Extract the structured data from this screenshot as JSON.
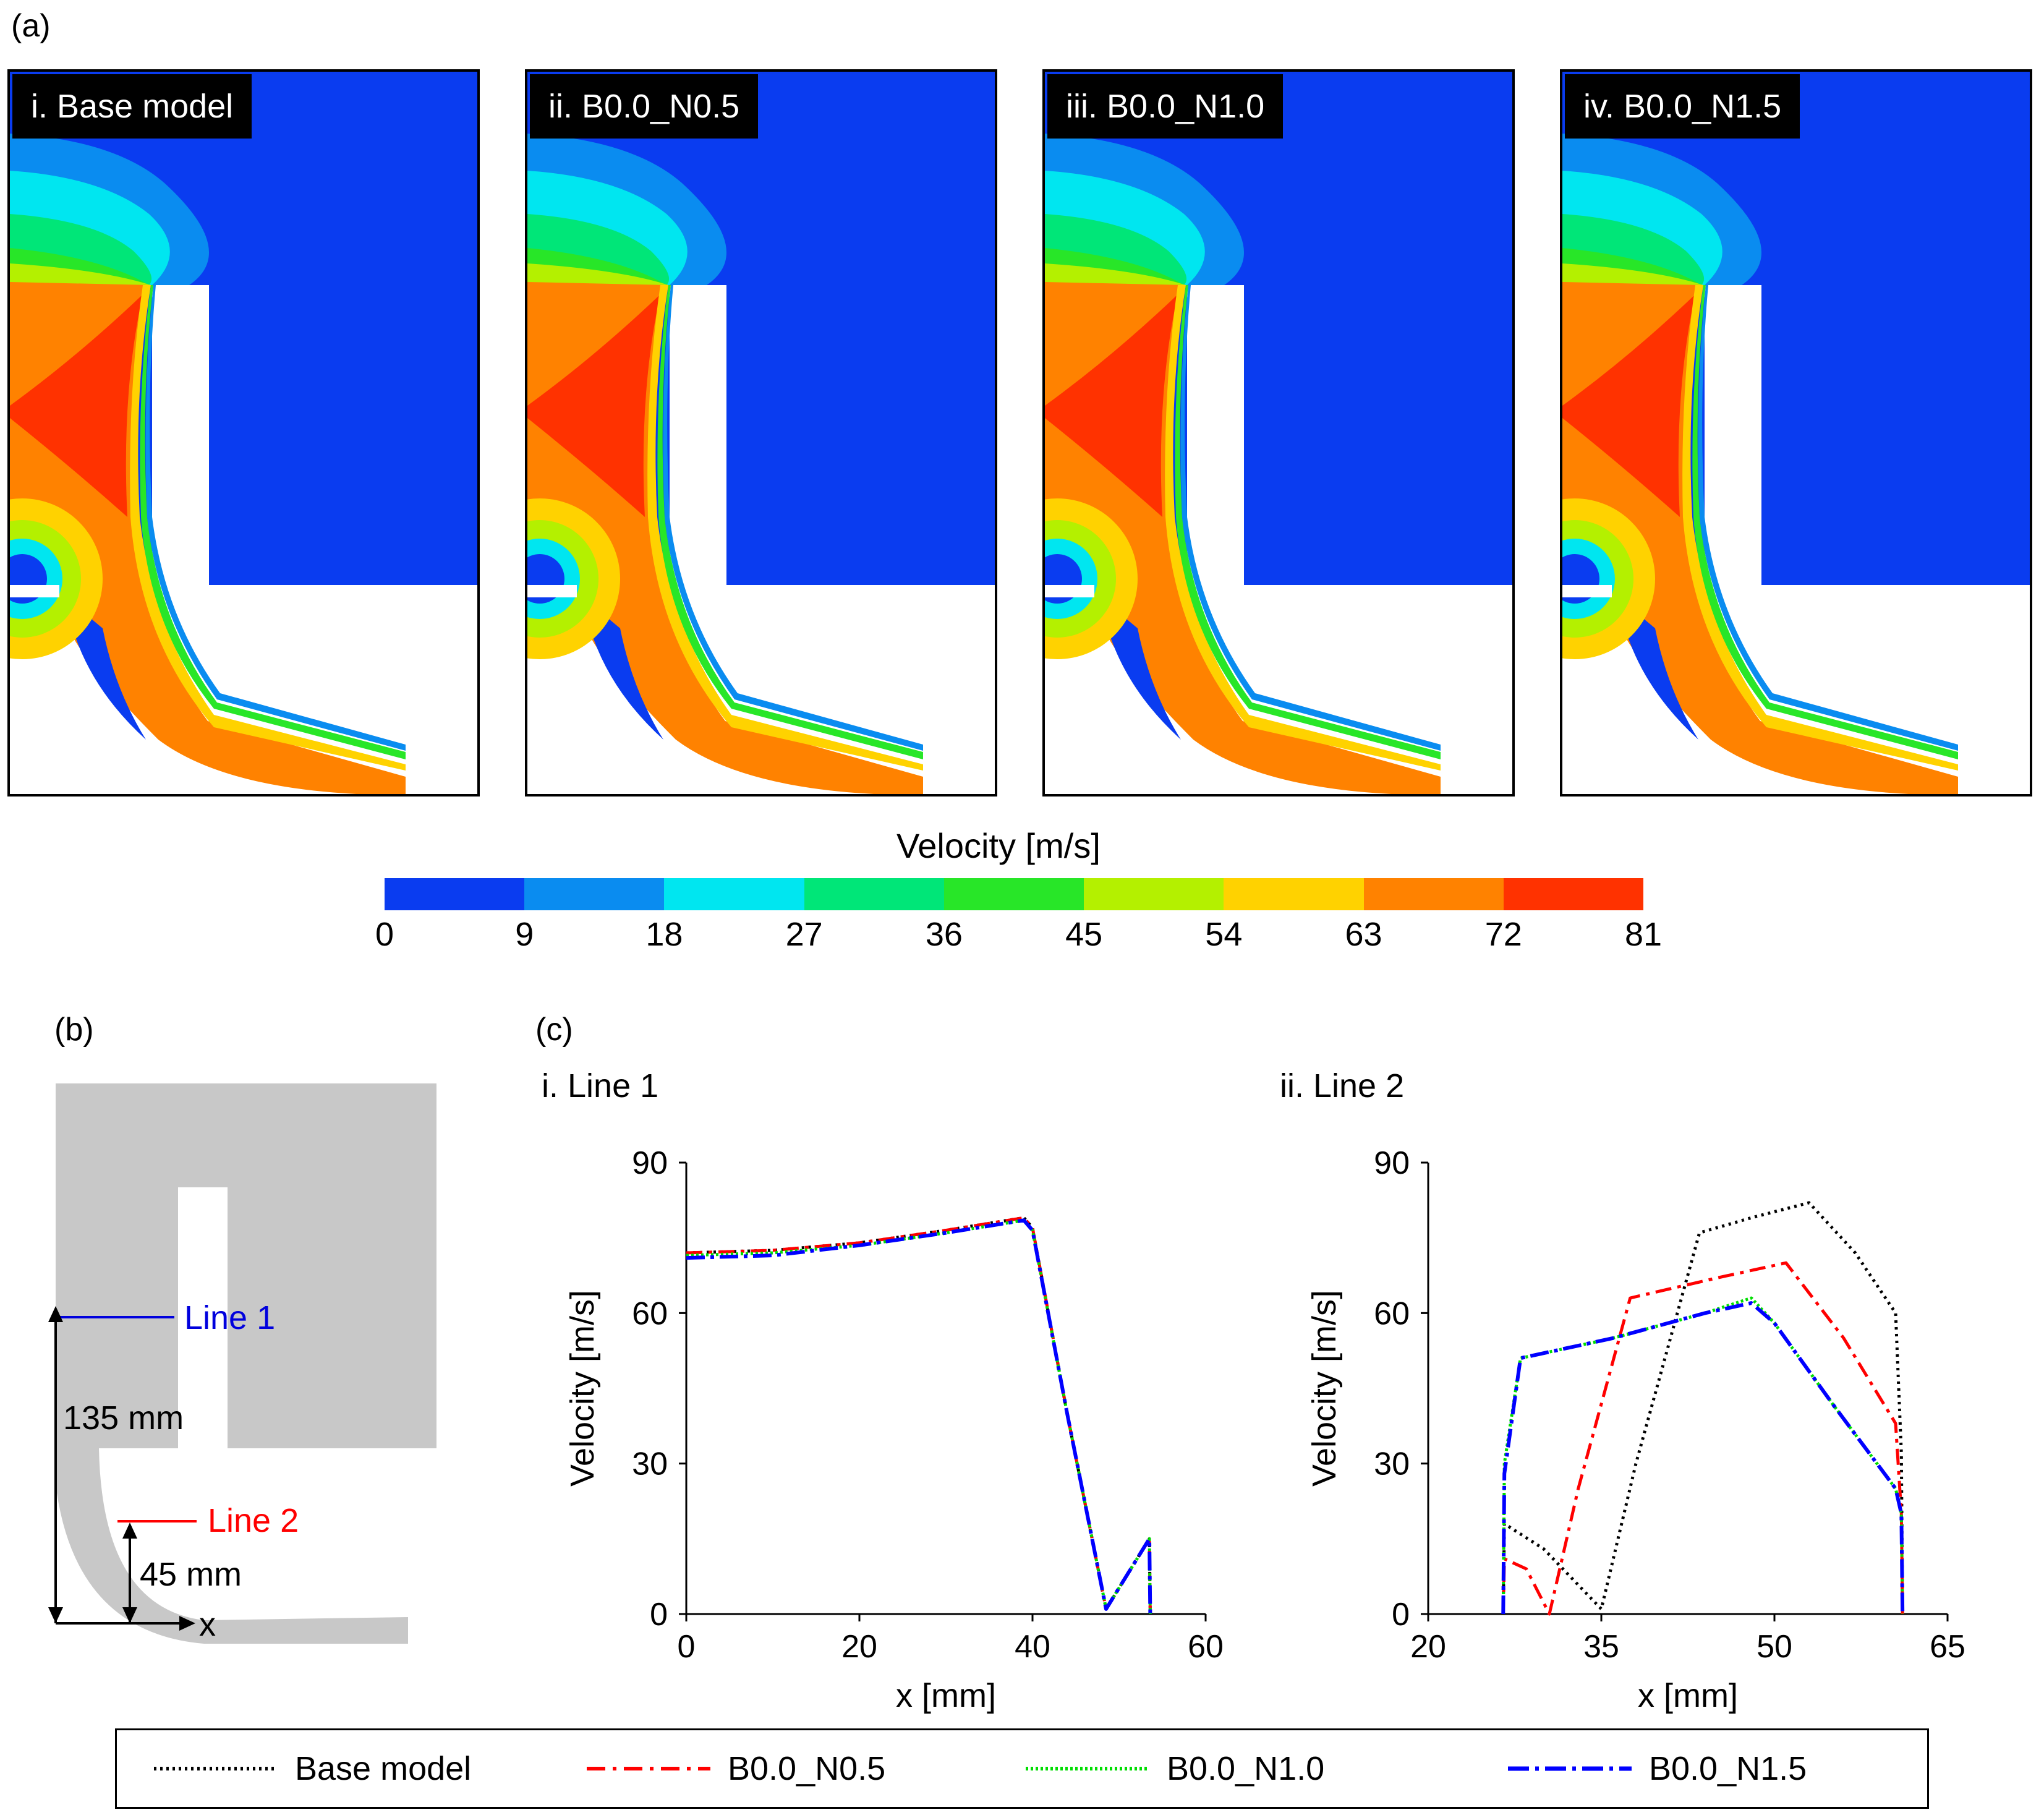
{
  "panel_a": {
    "label": "(a)",
    "panels": [
      {
        "tag": "i. Base model"
      },
      {
        "tag": "ii. B0.0_N0.5"
      },
      {
        "tag": "iii. B0.0_N1.0"
      },
      {
        "tag": "iv. B0.0_N1.5"
      }
    ],
    "colorbar": {
      "title": "Velocity [m/s]",
      "ticks": [
        "0",
        "9",
        "18",
        "27",
        "36",
        "45",
        "54",
        "63",
        "72",
        "81"
      ],
      "colors": [
        "#0a3cf0",
        "#0a8cf0",
        "#00e6f0",
        "#00e678",
        "#28e628",
        "#b4f000",
        "#ffd200",
        "#ff8200",
        "#ff3200"
      ]
    }
  },
  "panel_b": {
    "label": "(b)",
    "line1": "Line 1",
    "line2": "Line 2",
    "dim1": "135 mm",
    "dim2": "45 mm",
    "axis": "x"
  },
  "panel_c": {
    "label": "(c)",
    "sub1_title": "i. Line 1",
    "sub2_title": "ii. Line 2"
  },
  "colors": {
    "base": "#000000",
    "n05": "#ff0000",
    "n10": "#00dd00",
    "n15": "#0000ff"
  },
  "chart_data": [
    {
      "type": "line",
      "title": "i. Line 1",
      "xlabel": "x [mm]",
      "ylabel": "Velocity [m/s]",
      "xlim": [
        0,
        60
      ],
      "ylim": [
        0,
        90
      ],
      "xticks": [
        0,
        20,
        40,
        60
      ],
      "yticks": [
        0,
        30,
        60,
        90
      ],
      "series": [
        {
          "name": "Base model",
          "x": [
            0,
            10,
            20,
            30,
            39,
            40,
            44,
            48.5,
            51,
            53.5,
            53.6
          ],
          "y": [
            72,
            72.5,
            74,
            76.5,
            79,
            77,
            40,
            1,
            8,
            15,
            0
          ]
        },
        {
          "name": "B0.0_N0.5",
          "x": [
            0,
            10,
            20,
            30,
            39,
            40,
            44,
            48.5,
            51,
            53.5,
            53.6
          ],
          "y": [
            72,
            72.5,
            74,
            76.5,
            79,
            77,
            40,
            1,
            8,
            15,
            0
          ]
        },
        {
          "name": "B0.0_N1.0",
          "x": [
            0,
            10,
            20,
            30,
            39,
            40,
            44,
            48.5,
            51,
            53.5,
            53.6
          ],
          "y": [
            71.5,
            72,
            73.5,
            76,
            78.5,
            76.5,
            40,
            1,
            8,
            15,
            0
          ]
        },
        {
          "name": "B0.0_N1.5",
          "x": [
            0,
            10,
            20,
            30,
            39,
            40,
            44,
            48.5,
            51,
            53.5,
            53.6
          ],
          "y": [
            71,
            71.5,
            73.5,
            76,
            78.5,
            76.5,
            40,
            1,
            8,
            15,
            0
          ]
        }
      ]
    },
    {
      "type": "line",
      "title": "ii. Line 2",
      "xlabel": "x [mm]",
      "ylabel": "Velocity [m/s]",
      "xlim": [
        20,
        65
      ],
      "ylim": [
        0,
        90
      ],
      "xticks": [
        20,
        35,
        50,
        65
      ],
      "yticks": [
        0,
        30,
        60,
        90
      ],
      "series": [
        {
          "name": "Base model",
          "x": [
            26.5,
            26.6,
            30,
            35,
            38,
            43.5,
            48,
            53,
            57,
            60.5,
            61,
            61.1
          ],
          "y": [
            0,
            18,
            13,
            1,
            30,
            76,
            79,
            82,
            72,
            60,
            32,
            0
          ]
        },
        {
          "name": "B0.0_N0.5",
          "x": [
            26.5,
            26.6,
            28.5,
            30.5,
            33,
            37.5,
            45,
            51,
            56,
            60.5,
            61,
            61.1
          ],
          "y": [
            0,
            11,
            9,
            0,
            25,
            63,
            67,
            70,
            55,
            38,
            20,
            0
          ]
        },
        {
          "name": "B0.0_N1.0",
          "x": [
            26.5,
            26.6,
            28,
            36,
            44,
            48,
            50,
            55,
            60.5,
            61,
            61.1
          ],
          "y": [
            0,
            30,
            51,
            55,
            60,
            63,
            58,
            42,
            25,
            20,
            0
          ]
        },
        {
          "name": "B0.0_N1.5",
          "x": [
            26.5,
            26.6,
            28,
            36,
            44,
            48,
            50,
            55,
            60.5,
            61,
            61.1
          ],
          "y": [
            0,
            28,
            51,
            55,
            60,
            62,
            58,
            42,
            25,
            20,
            0
          ]
        }
      ]
    }
  ]
}
